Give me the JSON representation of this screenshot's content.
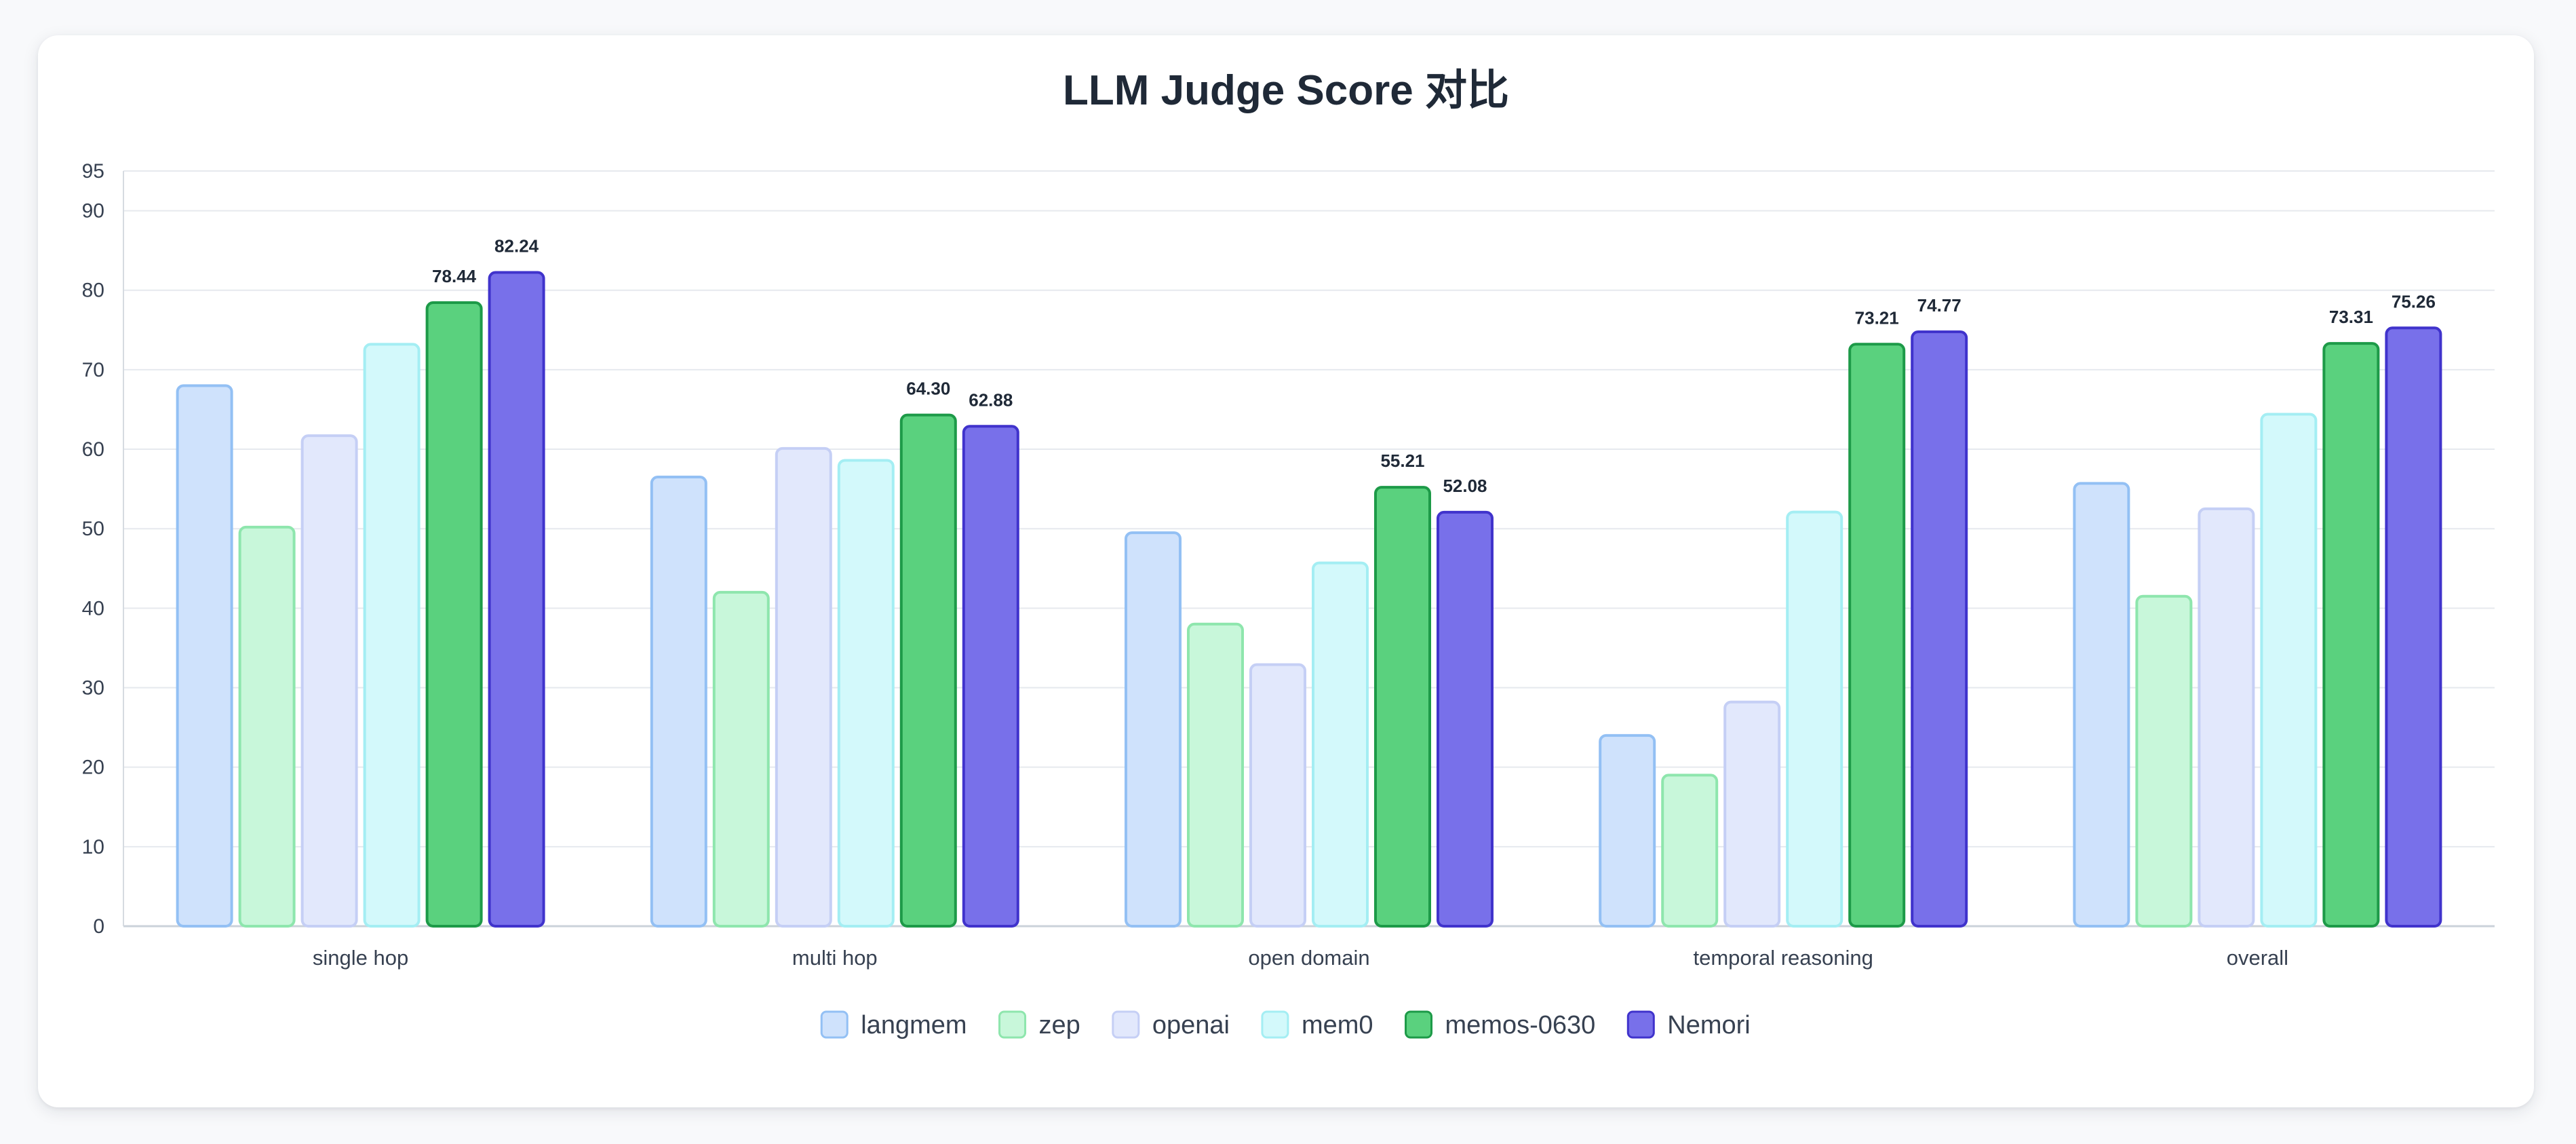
{
  "chart_data": {
    "type": "bar",
    "title": "LLM Judge Score 对比",
    "xlabel": "",
    "ylabel": "",
    "ylim": [
      0,
      95
    ],
    "yticks": [
      0,
      10,
      20,
      30,
      40,
      50,
      60,
      70,
      80,
      90,
      95
    ],
    "grid": true,
    "legend_position": "bottom-center",
    "categories": [
      "single hop",
      "multi hop",
      "open domain",
      "temporal reasoning",
      "overall"
    ],
    "series": [
      {
        "name": "langmem",
        "values": [
          68.0,
          56.5,
          49.5,
          24.0,
          55.7
        ],
        "fill": "#cfe2fc",
        "stroke": "#93c0f4",
        "show_labels": false
      },
      {
        "name": "zep",
        "values": [
          50.2,
          42.0,
          38.0,
          19.0,
          41.5
        ],
        "fill": "#c8f7da",
        "stroke": "#8ee6ad",
        "show_labels": false
      },
      {
        "name": "openai",
        "values": [
          61.7,
          60.1,
          32.9,
          28.2,
          52.5
        ],
        "fill": "#e2e8fc",
        "stroke": "#c5cff5",
        "show_labels": false
      },
      {
        "name": "mem0",
        "values": [
          73.2,
          58.6,
          45.7,
          52.1,
          64.4
        ],
        "fill": "#d3f9fb",
        "stroke": "#a4eef3",
        "show_labels": false
      },
      {
        "name": "memos-0630",
        "values": [
          78.44,
          64.3,
          55.21,
          73.21,
          73.31
        ],
        "fill": "#5ad17e",
        "stroke": "#1d9a48",
        "show_labels": true
      },
      {
        "name": "Nemori",
        "values": [
          82.24,
          62.88,
          52.08,
          74.77,
          75.26
        ],
        "fill": "#7870ea",
        "stroke": "#4033cc",
        "show_labels": true
      }
    ]
  }
}
